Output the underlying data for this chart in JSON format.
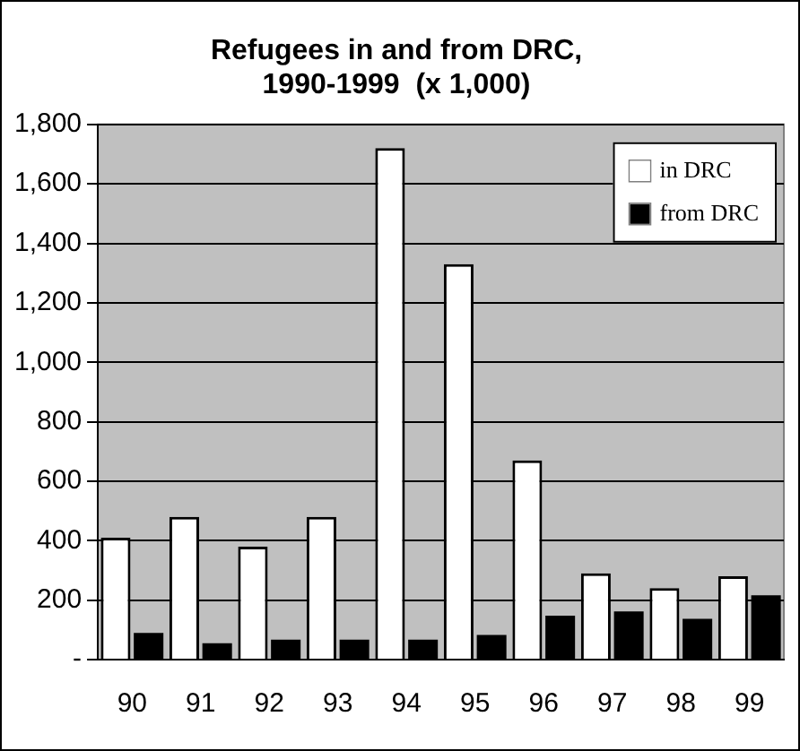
{
  "chart_data": {
    "type": "bar",
    "title": "Refugees in and from DRC,\n1990-1999  (x 1,000)",
    "categories": [
      "90",
      "91",
      "92",
      "93",
      "94",
      "95",
      "96",
      "97",
      "98",
      "99"
    ],
    "series": [
      {
        "name": "in DRC",
        "color": "#ffffff",
        "values": [
          410,
          480,
          380,
          480,
          1720,
          1330,
          670,
          290,
          240,
          280
        ]
      },
      {
        "name": "from DRC",
        "color": "#000000",
        "values": [
          90,
          55,
          67,
          67,
          67,
          83,
          148,
          162,
          137,
          216
        ]
      }
    ],
    "ylim": [
      0,
      1800
    ],
    "yticks": [
      {
        "value": 0,
        "label": "-"
      },
      {
        "value": 200,
        "label": "200"
      },
      {
        "value": 400,
        "label": "400"
      },
      {
        "value": 600,
        "label": "600"
      },
      {
        "value": 800,
        "label": "800"
      },
      {
        "value": 1000,
        "label": "1,000"
      },
      {
        "value": 1200,
        "label": "1,200"
      },
      {
        "value": 1400,
        "label": "1,400"
      },
      {
        "value": 1600,
        "label": "1,600"
      },
      {
        "value": 1800,
        "label": "1,800"
      }
    ],
    "grid": "y",
    "legend": "top right"
  }
}
